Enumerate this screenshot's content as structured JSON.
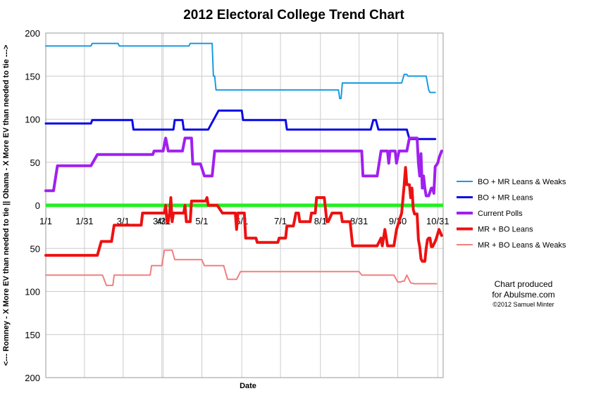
{
  "chart_data": {
    "type": "line",
    "title": "2012 Electoral College Trend Chart",
    "xlabel": "Date",
    "ylabel": "<--- Romney - X More EV than needed to tie || Obama - X More EV than needed to tie --->",
    "x_tick_labels": [
      "1/1",
      "1/31",
      "3/1",
      "3/31",
      "4/1",
      "5/1",
      "6/1",
      "7/1",
      "8/1",
      "8/31",
      "9/30",
      "10/31"
    ],
    "y_tick_labels": [
      "200",
      "150",
      "100",
      "50",
      "0",
      "50",
      "100",
      "150",
      "200"
    ],
    "ylim": [
      -200,
      200
    ],
    "grid": true,
    "legend_position": "right",
    "zero_line_color": "#22ee22",
    "series": [
      {
        "name": "BO + MR Leans & Weaks",
        "color": "#1a9be0",
        "width": 2,
        "points": [
          [
            0,
            185
          ],
          [
            35,
            185
          ],
          [
            36,
            188
          ],
          [
            56,
            188
          ],
          [
            57,
            185
          ],
          [
            111,
            185
          ],
          [
            112,
            188
          ],
          [
            129,
            188
          ],
          [
            130,
            150
          ],
          [
            131,
            150
          ],
          [
            132,
            134
          ],
          [
            227,
            134
          ],
          [
            228,
            124
          ],
          [
            229,
            124
          ],
          [
            230,
            142
          ],
          [
            276,
            142
          ],
          [
            278,
            152
          ],
          [
            280,
            152
          ],
          [
            281,
            150
          ],
          [
            295,
            150
          ],
          [
            297,
            134
          ],
          [
            298,
            131
          ],
          [
            302,
            131
          ]
        ]
      },
      {
        "name": "BO + MR Leans",
        "color": "#0a0ae6",
        "width": 3,
        "points": [
          [
            0,
            95
          ],
          [
            35,
            95
          ],
          [
            36,
            99
          ],
          [
            67,
            99
          ],
          [
            68,
            88
          ],
          [
            99,
            88
          ],
          [
            100,
            99
          ],
          [
            106,
            99
          ],
          [
            107,
            88
          ],
          [
            126,
            88
          ],
          [
            134,
            110
          ],
          [
            152,
            110
          ],
          [
            153,
            99
          ],
          [
            186,
            99
          ],
          [
            187,
            88
          ],
          [
            211,
            88
          ],
          [
            212,
            88
          ],
          [
            224,
            88
          ],
          [
            225,
            88
          ],
          [
            252,
            88
          ],
          [
            254,
            99
          ],
          [
            256,
            99
          ],
          [
            258,
            88
          ],
          [
            280,
            88
          ],
          [
            282,
            77
          ],
          [
            302,
            77
          ]
        ]
      },
      {
        "name": "Current Polls",
        "color": "#a020f0",
        "width": 4,
        "points": [
          [
            0,
            17
          ],
          [
            6,
            17
          ],
          [
            9,
            46
          ],
          [
            35,
            46
          ],
          [
            40,
            59
          ],
          [
            83,
            59
          ],
          [
            84,
            63
          ],
          [
            91,
            63
          ],
          [
            93,
            78
          ],
          [
            95,
            63
          ],
          [
            106,
            63
          ],
          [
            108,
            78
          ],
          [
            113,
            78
          ],
          [
            114,
            48
          ],
          [
            120,
            48
          ],
          [
            123,
            34
          ],
          [
            129,
            34
          ],
          [
            131,
            63
          ],
          [
            233,
            63
          ],
          [
            234,
            63
          ],
          [
            238,
            63
          ],
          [
            245,
            63
          ],
          [
            246,
            34
          ],
          [
            257,
            34
          ],
          [
            260,
            63
          ],
          [
            265,
            63
          ],
          [
            266,
            49
          ],
          [
            267,
            63
          ],
          [
            271,
            63
          ],
          [
            272,
            49
          ],
          [
            274,
            63
          ],
          [
            280,
            63
          ],
          [
            282,
            78
          ],
          [
            288,
            78
          ],
          [
            289,
            49
          ],
          [
            290,
            34
          ],
          [
            291,
            60
          ],
          [
            292,
            20
          ],
          [
            293,
            34
          ],
          [
            294,
            20
          ],
          [
            295,
            11
          ],
          [
            297,
            11
          ],
          [
            299,
            20
          ],
          [
            300,
            20
          ],
          [
            301,
            14
          ],
          [
            302,
            45
          ],
          [
            304,
            49
          ],
          [
            305,
            55
          ],
          [
            307,
            63
          ]
        ]
      },
      {
        "name": "MR + BO Leans",
        "color": "#ee1111",
        "width": 4,
        "points": [
          [
            0,
            -58
          ],
          [
            40,
            -58
          ],
          [
            43,
            -42
          ],
          [
            51,
            -42
          ],
          [
            53,
            -23
          ],
          [
            67,
            -23
          ],
          [
            68,
            -23
          ],
          [
            74,
            -23
          ],
          [
            75,
            -9
          ],
          [
            92,
            -9
          ],
          [
            93,
            0
          ],
          [
            94,
            -19
          ],
          [
            95,
            -19
          ],
          [
            96,
            -9
          ],
          [
            97,
            9
          ],
          [
            98,
            -19
          ],
          [
            99,
            -9
          ],
          [
            107,
            -9
          ],
          [
            108,
            0
          ],
          [
            109,
            -19
          ],
          [
            112,
            -19
          ],
          [
            113,
            5
          ],
          [
            124,
            5
          ],
          [
            125,
            9
          ],
          [
            126,
            0
          ],
          [
            133,
            0
          ],
          [
            137,
            -9
          ],
          [
            147,
            -9
          ],
          [
            148,
            -28
          ],
          [
            149,
            -9
          ],
          [
            154,
            -9
          ],
          [
            155,
            -38
          ],
          [
            163,
            -38
          ],
          [
            164,
            -43
          ],
          [
            180,
            -43
          ],
          [
            181,
            -38
          ],
          [
            186,
            -38
          ],
          [
            187,
            -24
          ],
          [
            192,
            -24
          ],
          [
            194,
            -9
          ],
          [
            196,
            -9
          ],
          [
            197,
            -19
          ],
          [
            205,
            -19
          ],
          [
            206,
            -9
          ],
          [
            209,
            -9
          ],
          [
            210,
            9
          ],
          [
            216,
            9
          ],
          [
            218,
            -19
          ],
          [
            219,
            -19
          ],
          [
            222,
            -9
          ],
          [
            229,
            -9
          ],
          [
            230,
            -19
          ],
          [
            236,
            -19
          ],
          [
            238,
            -47
          ],
          [
            257,
            -47
          ],
          [
            260,
            -38
          ],
          [
            261,
            -47
          ],
          [
            263,
            -28
          ],
          [
            265,
            -47
          ],
          [
            270,
            -47
          ],
          [
            272,
            -28
          ],
          [
            276,
            -9
          ],
          [
            278,
            24
          ],
          [
            279,
            44
          ],
          [
            280,
            24
          ],
          [
            282,
            24
          ],
          [
            283,
            9
          ],
          [
            284,
            20
          ],
          [
            285,
            -5
          ],
          [
            286,
            -10
          ],
          [
            288,
            -10
          ],
          [
            289,
            -40
          ],
          [
            290,
            -48
          ],
          [
            291,
            -62
          ],
          [
            292,
            -65
          ],
          [
            294,
            -65
          ],
          [
            295,
            -50
          ],
          [
            296,
            -40
          ],
          [
            297,
            -38
          ],
          [
            298,
            -38
          ],
          [
            299,
            -48
          ],
          [
            300,
            -48
          ],
          [
            302,
            -42
          ],
          [
            303,
            -38
          ],
          [
            305,
            -28
          ],
          [
            307,
            -35
          ]
        ]
      },
      {
        "name": "MR + BO Leans & Weaks",
        "color": "#f08080",
        "width": 2,
        "points": [
          [
            0,
            -81
          ],
          [
            44,
            -81
          ],
          [
            47,
            -93
          ],
          [
            52,
            -93
          ],
          [
            53,
            -81
          ],
          [
            76,
            -81
          ],
          [
            81,
            -81
          ],
          [
            82,
            -70
          ],
          [
            90,
            -70
          ],
          [
            92,
            -52
          ],
          [
            98,
            -52
          ],
          [
            100,
            -63
          ],
          [
            121,
            -63
          ],
          [
            123,
            -70
          ],
          [
            138,
            -70
          ],
          [
            141,
            -86
          ],
          [
            148,
            -86
          ],
          [
            151,
            -77
          ],
          [
            223,
            -77
          ],
          [
            224,
            -77
          ],
          [
            243,
            -77
          ],
          [
            245,
            -81
          ],
          [
            252,
            -81
          ],
          [
            253,
            -81
          ],
          [
            270,
            -81
          ],
          [
            273,
            -89
          ],
          [
            275,
            -89
          ],
          [
            277,
            -88
          ],
          [
            278,
            -88
          ],
          [
            280,
            -81
          ],
          [
            283,
            -90
          ],
          [
            286,
            -91
          ],
          [
            303,
            -91
          ]
        ]
      }
    ]
  },
  "credit": {
    "line1": "Chart produced",
    "line2": "for Abulsme.com",
    "line3": "©2012 Samuel Minter"
  }
}
